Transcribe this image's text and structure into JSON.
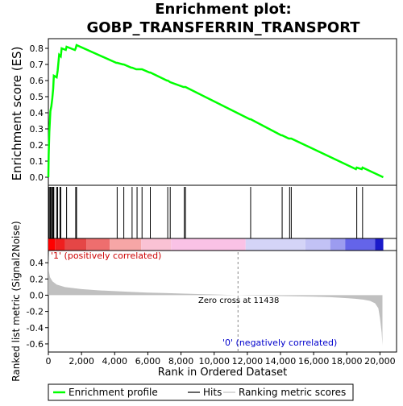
{
  "chart_data": {
    "type": "line",
    "title_line1": "Enrichment plot:",
    "title_line2": "GOBP_TRANSFERRIN_TRANSPORT",
    "es_ylabel": "Enrichment score (ES)",
    "metric_ylabel": "Ranked list metric (Signal2Noise)",
    "xlabel": "Rank in Ordered Dataset",
    "xlim": [
      0,
      21000
    ],
    "x_ticks": [
      0,
      2000,
      4000,
      6000,
      8000,
      10000,
      12000,
      14000,
      16000,
      18000,
      20000
    ],
    "x_tick_labels": [
      "0",
      "2,000",
      "4,000",
      "6,000",
      "8,000",
      "10,000",
      "12,000",
      "14,000",
      "16,000",
      "18,000",
      "20,000"
    ],
    "es_ylim": [
      -0.05,
      0.86
    ],
    "es_ticks": [
      0.0,
      0.1,
      0.2,
      0.3,
      0.4,
      0.5,
      0.6,
      0.7,
      0.8
    ],
    "es_tick_labels": [
      "0.0",
      "0.1",
      "0.2",
      "0.3",
      "0.4",
      "0.5",
      "0.6",
      "0.7",
      "0.8"
    ],
    "metric_ylim": [
      -0.7,
      0.55
    ],
    "metric_ticks": [
      0.4,
      0.2,
      0.0,
      -0.2,
      -0.4,
      -0.6
    ],
    "metric_tick_labels": [
      "0.4",
      "0.2",
      "0.0",
      "-0.2",
      "-0.4",
      "-0.6"
    ],
    "hits": [
      20,
      60,
      120,
      180,
      240,
      290,
      330,
      500,
      560,
      700,
      750,
      1100,
      1650,
      1700,
      4150,
      4550,
      5050,
      5350,
      5650,
      6150,
      7200,
      7350,
      8200,
      8270,
      12200,
      14100,
      14550,
      14650,
      18600,
      18950
    ],
    "es_points": [
      [
        0,
        0.0
      ],
      [
        20,
        0.14
      ],
      [
        60,
        0.28
      ],
      [
        120,
        0.41
      ],
      [
        180,
        0.44
      ],
      [
        240,
        0.49
      ],
      [
        290,
        0.55
      ],
      [
        330,
        0.63
      ],
      [
        500,
        0.62
      ],
      [
        560,
        0.66
      ],
      [
        650,
        0.76
      ],
      [
        750,
        0.75
      ],
      [
        800,
        0.8
      ],
      [
        1050,
        0.79
      ],
      [
        1100,
        0.81
      ],
      [
        1600,
        0.79
      ],
      [
        1650,
        0.8
      ],
      [
        1700,
        0.82
      ],
      [
        4100,
        0.71
      ],
      [
        4150,
        0.71
      ],
      [
        4500,
        0.7
      ],
      [
        4550,
        0.7
      ],
      [
        5000,
        0.68
      ],
      [
        5050,
        0.68
      ],
      [
        5300,
        0.67
      ],
      [
        5350,
        0.67
      ],
      [
        5600,
        0.67
      ],
      [
        5650,
        0.67
      ],
      [
        6100,
        0.65
      ],
      [
        6150,
        0.65
      ],
      [
        7150,
        0.6
      ],
      [
        7200,
        0.6
      ],
      [
        7350,
        0.59
      ],
      [
        8150,
        0.56
      ],
      [
        8200,
        0.56
      ],
      [
        8270,
        0.56
      ],
      [
        12150,
        0.36
      ],
      [
        12200,
        0.36
      ],
      [
        14050,
        0.26
      ],
      [
        14100,
        0.26
      ],
      [
        14500,
        0.24
      ],
      [
        14550,
        0.24
      ],
      [
        14650,
        0.24
      ],
      [
        18550,
        0.05
      ],
      [
        18600,
        0.06
      ],
      [
        18900,
        0.05
      ],
      [
        18950,
        0.06
      ],
      [
        20200,
        0.0
      ]
    ],
    "metric_points": [
      [
        0,
        0.53
      ],
      [
        30,
        0.3
      ],
      [
        100,
        0.22
      ],
      [
        250,
        0.17
      ],
      [
        500,
        0.13
      ],
      [
        1000,
        0.1
      ],
      [
        2000,
        0.075
      ],
      [
        3000,
        0.06
      ],
      [
        4000,
        0.05
      ],
      [
        5000,
        0.04
      ],
      [
        6000,
        0.032
      ],
      [
        7000,
        0.026
      ],
      [
        8000,
        0.02
      ],
      [
        9000,
        0.014
      ],
      [
        10000,
        0.009
      ],
      [
        11000,
        0.003
      ],
      [
        11438,
        0.0
      ],
      [
        12000,
        -0.003
      ],
      [
        13000,
        -0.007
      ],
      [
        14000,
        -0.011
      ],
      [
        15000,
        -0.014
      ],
      [
        16000,
        -0.018
      ],
      [
        17000,
        -0.024
      ],
      [
        17500,
        -0.03
      ],
      [
        18000,
        -0.036
      ],
      [
        18500,
        -0.044
      ],
      [
        19000,
        -0.055
      ],
      [
        19400,
        -0.07
      ],
      [
        19700,
        -0.1
      ],
      [
        19900,
        -0.16
      ],
      [
        20000,
        -0.28
      ],
      [
        20100,
        -0.46
      ],
      [
        20150,
        -0.62
      ]
    ],
    "colorbar_segments": [
      {
        "start": 0,
        "end": 400,
        "color": "#ff0000"
      },
      {
        "start": 400,
        "end": 1000,
        "color": "#ef1f1f"
      },
      {
        "start": 1000,
        "end": 2300,
        "color": "#e54646"
      },
      {
        "start": 2300,
        "end": 3700,
        "color": "#ee6e6e"
      },
      {
        "start": 3700,
        "end": 5600,
        "color": "#f6a6a6"
      },
      {
        "start": 5600,
        "end": 7400,
        "color": "#fac2d4"
      },
      {
        "start": 7400,
        "end": 11900,
        "color": "#fac2e6"
      },
      {
        "start": 11900,
        "end": 15500,
        "color": "#d4d4f7"
      },
      {
        "start": 15500,
        "end": 17000,
        "color": "#c2c2f5"
      },
      {
        "start": 17000,
        "end": 17900,
        "color": "#9c9cf0"
      },
      {
        "start": 17900,
        "end": 19700,
        "color": "#6464e9"
      },
      {
        "start": 19700,
        "end": 20200,
        "color": "#1a1aca"
      }
    ],
    "zero_cross_label": "Zero cross at 11438",
    "zero_cross": 11438,
    "positive_label": "'1' (positively correlated)",
    "negative_label": "'0' (negatively correlated)",
    "colors": {
      "es_line": "#00ff00",
      "hit": "#000000",
      "metric_fill": "#c0c0c0",
      "positive_text": "#cc0000",
      "negative_text": "#0000cc",
      "zero_line": "#888888"
    },
    "legend": [
      {
        "label": "Enrichment profile",
        "icon": "green-line"
      },
      {
        "label": "Hits",
        "icon": "black-line"
      },
      {
        "label": "Ranking metric scores",
        "icon": "gray-line"
      }
    ]
  }
}
